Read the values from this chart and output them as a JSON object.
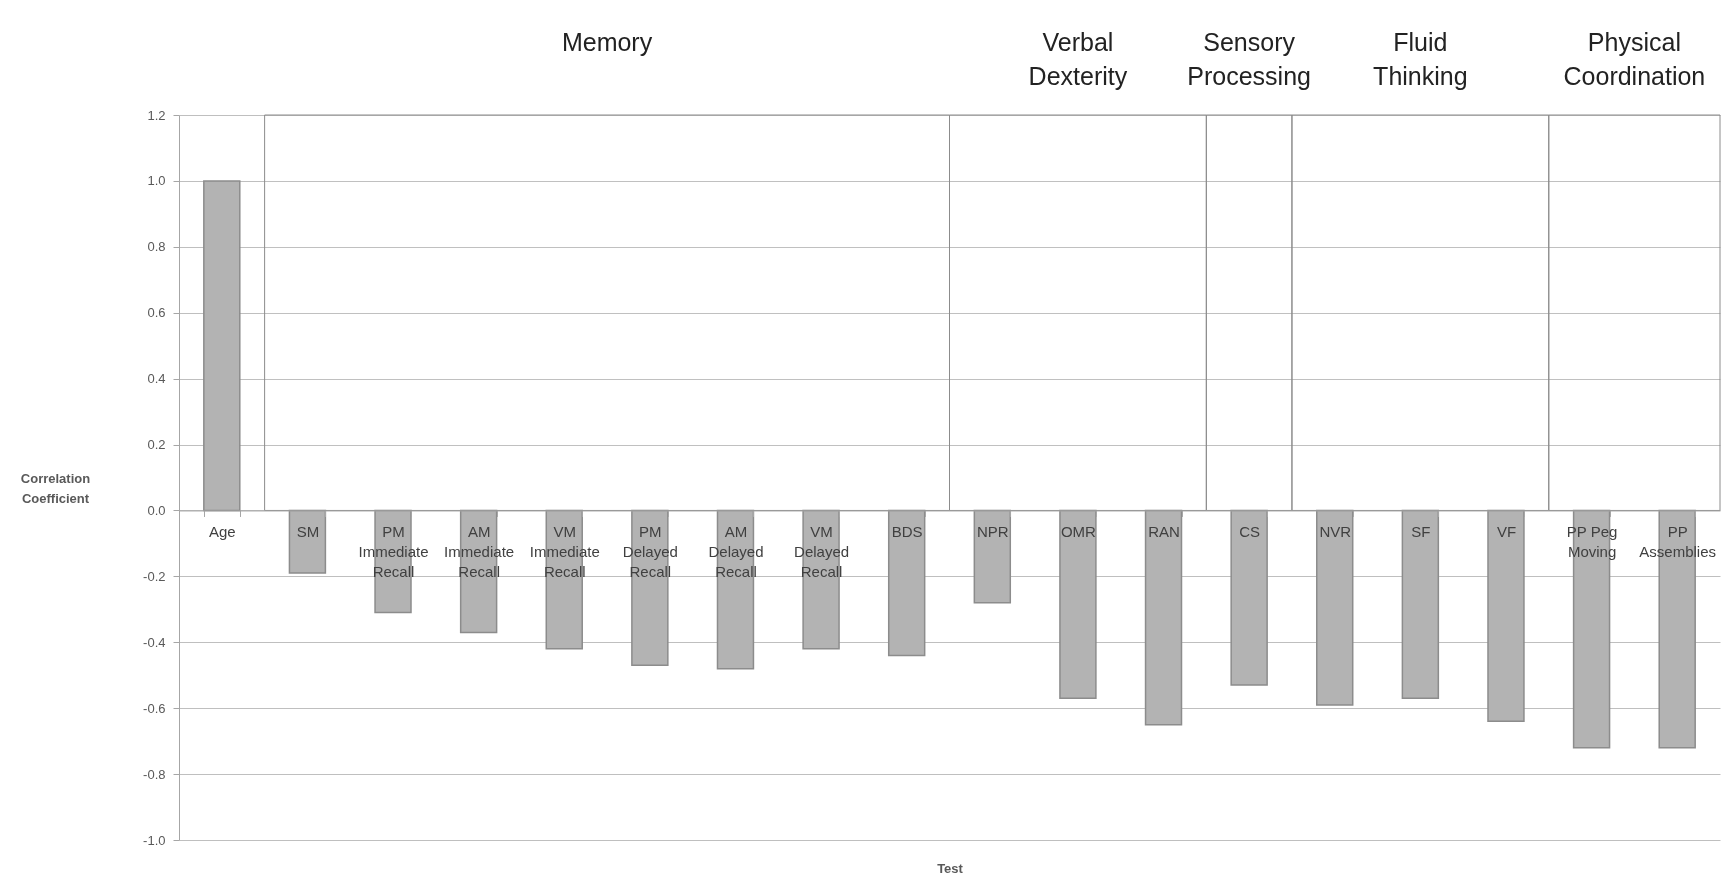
{
  "chart_data": {
    "type": "bar",
    "xlabel": "Test",
    "ylabel": "Correlation\nCoefficient",
    "categories": [
      "Age",
      "SM",
      "PM\nImmediate\nRecall",
      "AM\nImmediate\nRecall",
      "VM\nImmediate\nRecall",
      "PM\nDelayed\nRecall",
      "AM\nDelayed\nRecall",
      "VM\nDelayed\nRecall",
      "BDS",
      "NPR",
      "OMR",
      "RAN",
      "CS",
      "NVR",
      "SF",
      "VF",
      "PP Peg\nMoving",
      "PP\nAssemblies"
    ],
    "values": [
      1.0,
      -0.19,
      -0.31,
      -0.37,
      -0.42,
      -0.47,
      -0.48,
      -0.42,
      -0.44,
      -0.28,
      -0.57,
      -0.65,
      -0.53,
      -0.59,
      -0.57,
      -0.64,
      -0.72,
      -0.72
    ],
    "color": "#b3b3b3",
    "ylim": [
      -1.0,
      1.2
    ],
    "yticks": [
      {
        "value": -1.0,
        "label": "-1.0"
      },
      {
        "value": -0.8,
        "label": "-0.8"
      },
      {
        "value": -0.6,
        "label": "-0.6"
      },
      {
        "value": -0.4,
        "label": "-0.4"
      },
      {
        "value": -0.2,
        "label": "-0.2"
      },
      {
        "value": 0,
        "label": "0.0"
      },
      {
        "value": 0.2,
        "label": "0.2"
      },
      {
        "value": 0.4,
        "label": "0.4"
      },
      {
        "value": 0.6,
        "label": "0.6"
      },
      {
        "value": 0.8,
        "label": "0.8"
      },
      {
        "value": 1.0,
        "label": "1.0"
      },
      {
        "value": 1.2,
        "label": "1.2"
      }
    ],
    "grid": "y",
    "bands": [
      {
        "axis": "x",
        "from": "SM",
        "to": "BDS",
        "label": "Memory"
      },
      {
        "axis": "x",
        "from": "NPR",
        "to": "RAN",
        "label": "Verbal\nDexterity"
      },
      {
        "axis": "x",
        "from": "CS",
        "to": "CS",
        "label": "Sensory\nProcessing"
      },
      {
        "axis": "x",
        "from": "NVR",
        "to": "VF",
        "label": "Fluid\nThinking"
      },
      {
        "axis": "x",
        "from": "PP Peg\nMoving",
        "to": "PP\nAssemblies",
        "label": "Physical\nCoordination"
      }
    ]
  }
}
